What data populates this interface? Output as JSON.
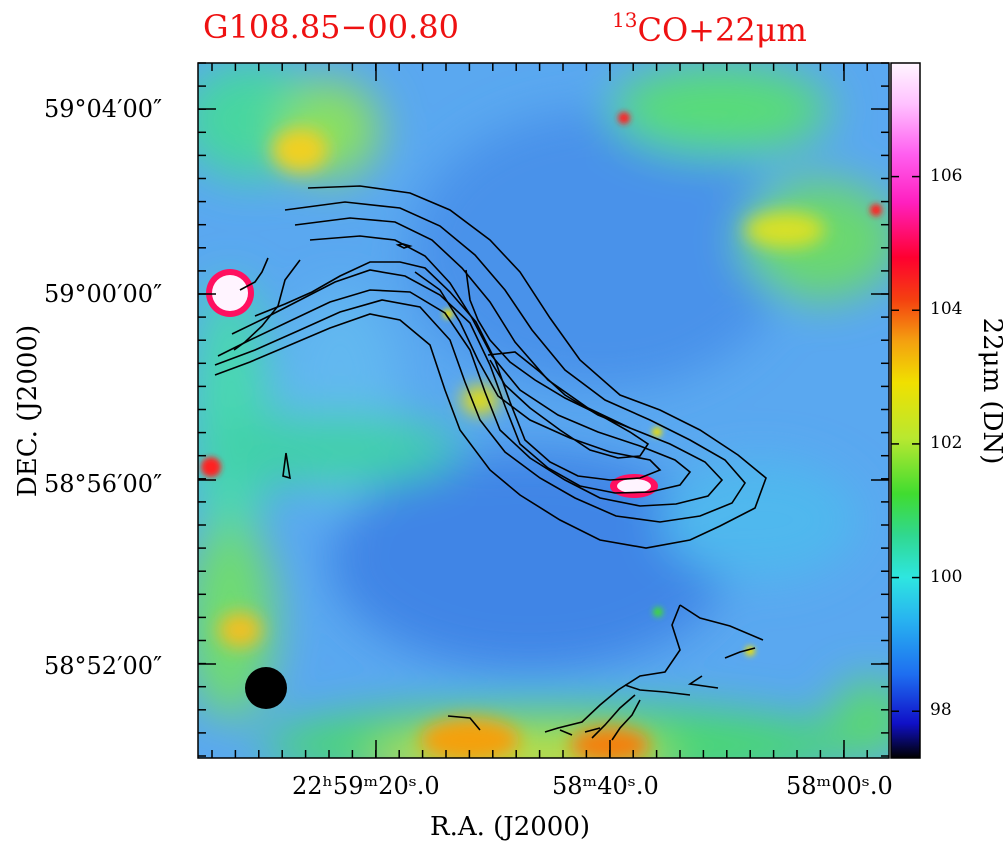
{
  "title": {
    "source": "G108.85−00.80",
    "tracer_sup": "13",
    "tracer": "CO+22μm"
  },
  "chart_data": {
    "type": "heatmap",
    "xlabel": "R.A. (J2000)",
    "ylabel": "DEC. (J2000)",
    "x_ticks": [
      {
        "value": "22h59m20.0s",
        "label": "22ʰ59ᵐ20ˢ.0"
      },
      {
        "value": "22h58m40.0s",
        "label": "58ᵐ40ˢ.0"
      },
      {
        "value": "22h58m00.0s",
        "label": "58ᵐ00ˢ.0"
      }
    ],
    "y_ticks": [
      "59°04′00″",
      "59°00′00″",
      "58°56′00″",
      "58°52′00″"
    ],
    "colorbar": {
      "label": "22μm (DN)",
      "ticks": [
        98,
        100,
        102,
        104,
        106
      ],
      "range": [
        97.3,
        107.7
      ],
      "colors": [
        "#000000",
        "#1010c8",
        "#1e6ef0",
        "#28b4f0",
        "#2ee6e0",
        "#30d890",
        "#40dc30",
        "#b8e830",
        "#f0e000",
        "#f4a010",
        "#f44010",
        "#ff0030",
        "#ff20c0",
        "#ff60f0",
        "#ffc0ff",
        "#fff6ff"
      ]
    },
    "overlay": "13CO integrated intensity contours",
    "beam": "filled circle, lower-left"
  }
}
